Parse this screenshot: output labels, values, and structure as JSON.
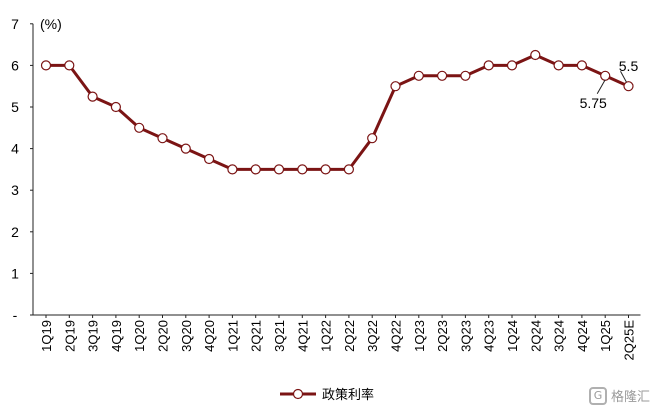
{
  "chart_data": {
    "type": "line",
    "ylabel": "(%)",
    "ylim": [
      0,
      7
    ],
    "yticks": [
      {
        "value": 0,
        "label": "-"
      },
      {
        "value": 1,
        "label": "1"
      },
      {
        "value": 2,
        "label": "2"
      },
      {
        "value": 3,
        "label": "3"
      },
      {
        "value": 4,
        "label": "4"
      },
      {
        "value": 5,
        "label": "5"
      },
      {
        "value": 6,
        "label": "6"
      },
      {
        "value": 7,
        "label": "7"
      }
    ],
    "grid": false,
    "legend_position": "bottom-center",
    "categories": [
      "1Q19",
      "2Q19",
      "3Q19",
      "4Q19",
      "1Q20",
      "2Q20",
      "3Q20",
      "4Q20",
      "1Q21",
      "2Q21",
      "3Q21",
      "4Q21",
      "1Q22",
      "2Q22",
      "3Q22",
      "4Q22",
      "1Q23",
      "2Q23",
      "3Q23",
      "4Q23",
      "1Q24",
      "2Q24",
      "3Q24",
      "4Q24",
      "1Q25",
      "2Q25E"
    ],
    "series": [
      {
        "name": "政策利率",
        "color": "#7b1414",
        "values": [
          6.0,
          6.0,
          5.25,
          5.0,
          4.5,
          4.25,
          4.0,
          3.75,
          3.5,
          3.5,
          3.5,
          3.5,
          3.5,
          3.5,
          4.25,
          5.5,
          5.75,
          5.75,
          5.75,
          6.0,
          6.0,
          6.25,
          6.0,
          6.0,
          5.75,
          5.5
        ]
      }
    ],
    "annotations": [
      {
        "category": "1Q25",
        "text": "5.75",
        "position": "below"
      },
      {
        "category": "2Q25E",
        "text": "5.5",
        "position": "above"
      }
    ]
  },
  "watermark": {
    "logo_text": "G",
    "text": "格隆汇"
  }
}
